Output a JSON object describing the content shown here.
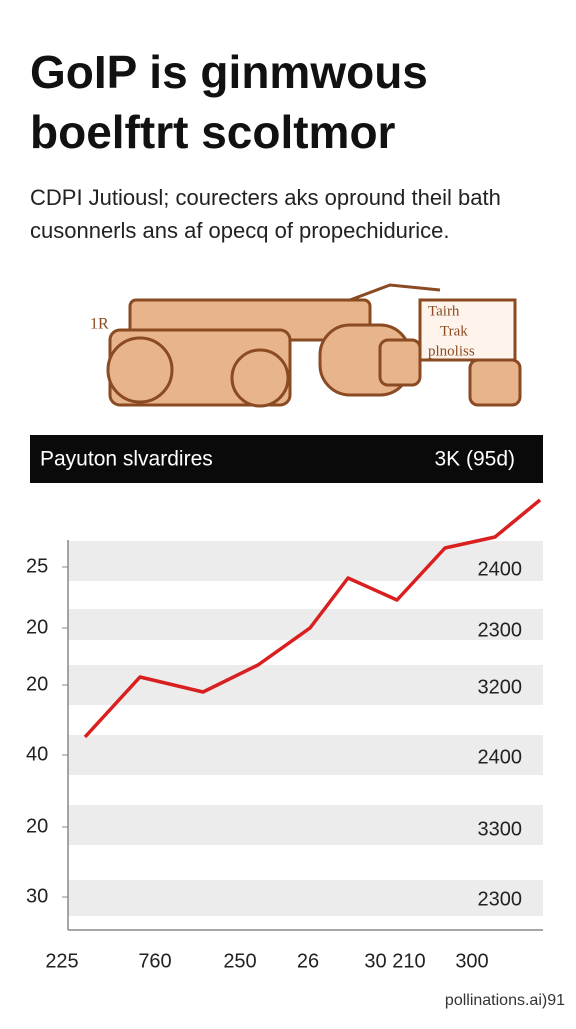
{
  "header": {
    "title_lines": [
      "GoIP is ginmwous",
      "boelftrt scoltmor"
    ],
    "subtitle_lines": [
      "CDPI Jutiousl; courecters aks opround theil bath",
      "cusonnerls ans af opecq of propechidurice."
    ]
  },
  "illustration": {
    "labels": [
      "1R",
      "Tairh",
      "Trak",
      "plnoliss"
    ]
  },
  "banner": {
    "left": "Payuton slvardires",
    "right": "3K (95d)"
  },
  "chart": {
    "left_labels": [
      "25",
      "20",
      "20",
      "40",
      "20",
      "30"
    ],
    "right_labels": [
      "2400",
      "2300",
      "3200",
      "2400",
      "3300",
      "2300"
    ],
    "bottom_labels": [
      "225",
      "760",
      "250",
      "26",
      "30  210",
      "300"
    ]
  },
  "footer": {
    "watermark": "pollinations.ai)91"
  }
}
